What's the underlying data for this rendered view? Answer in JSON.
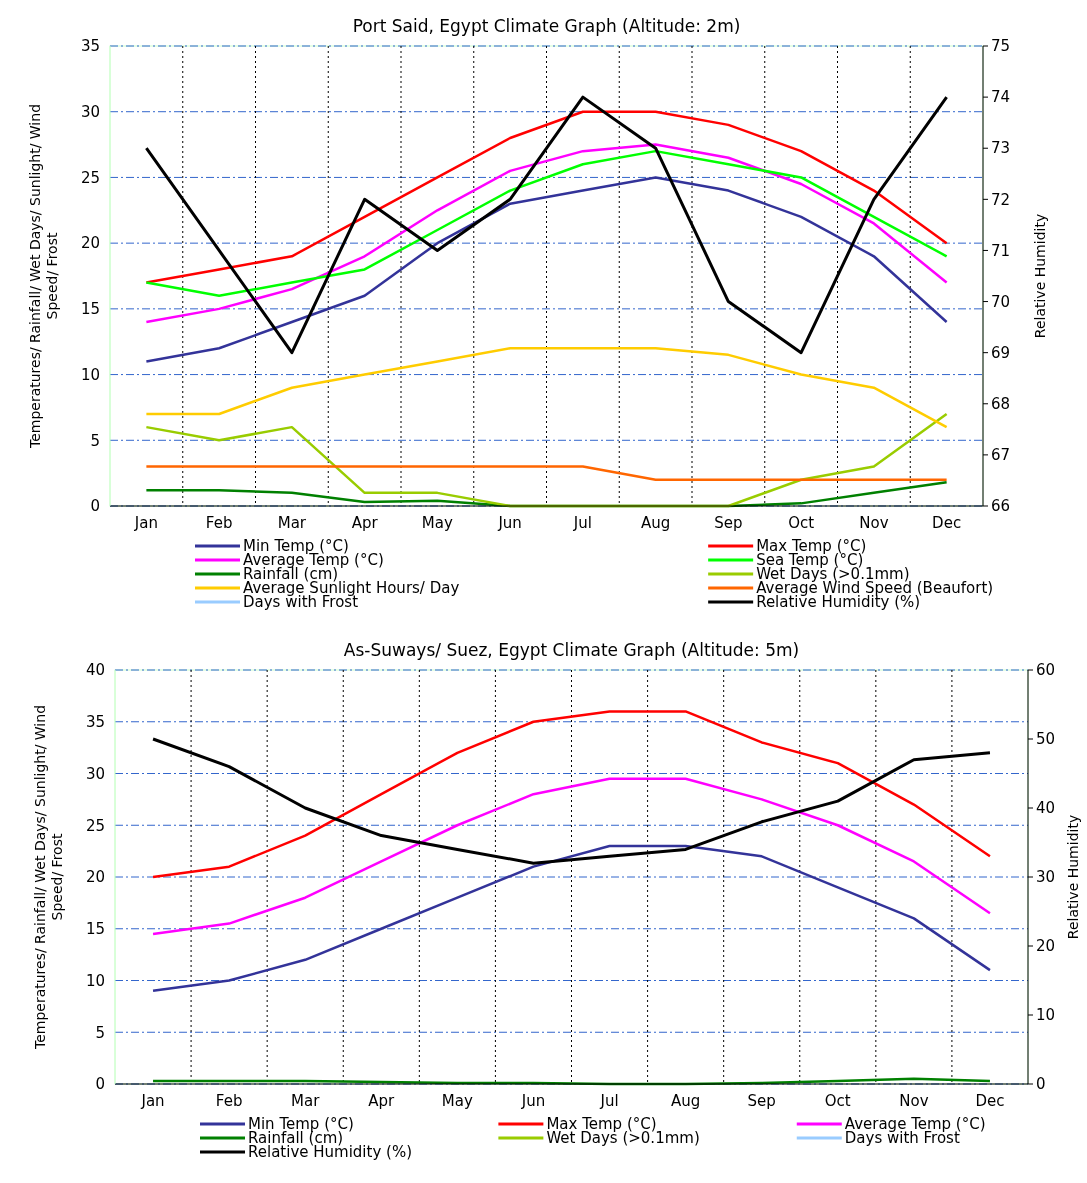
{
  "chart_data": [
    {
      "type": "line",
      "title": "Port Said, Egypt Climate Graph (Altitude: 2m)",
      "ylabel": "Temperatures/ Rainfall/ Wet Days/ Sunlight/ Wind Speed/ Frost",
      "y2label": "Relative Humidity",
      "categories": [
        "Jan",
        "Feb",
        "Mar",
        "Apr",
        "May",
        "Jun",
        "Jul",
        "Aug",
        "Sep",
        "Oct",
        "Nov",
        "Dec"
      ],
      "ylim": [
        0,
        35
      ],
      "yticks": [
        0,
        5,
        10,
        15,
        20,
        25,
        30,
        35
      ],
      "y2lim": [
        66,
        75
      ],
      "y2ticks": [
        66,
        67,
        68,
        69,
        70,
        71,
        72,
        73,
        74,
        75
      ],
      "grid": true,
      "legend": "bottom",
      "series": [
        {
          "name": "Min Temp (°C)",
          "color": "#333399",
          "values": [
            11,
            12,
            14,
            16,
            20,
            23,
            24,
            25,
            24,
            22,
            19,
            14
          ]
        },
        {
          "name": "Max Temp (°C)",
          "color": "#ff0000",
          "values": [
            17,
            18,
            19,
            22,
            25,
            28,
            30,
            30,
            29,
            27,
            24,
            20
          ]
        },
        {
          "name": "Average Temp (°C)",
          "color": "#ff00ff",
          "values": [
            14,
            15,
            16.5,
            19,
            22.5,
            25.5,
            27,
            27.5,
            26.5,
            24.5,
            21.5,
            17
          ]
        },
        {
          "name": "Sea Temp (°C)",
          "color": "#00ff00",
          "values": [
            17,
            16,
            17,
            18,
            21,
            24,
            26,
            27,
            26,
            25,
            22,
            19
          ]
        },
        {
          "name": "Rainfall (cm)",
          "color": "#008000",
          "values": [
            1.2,
            1.2,
            1,
            0.3,
            0.4,
            0,
            0,
            0,
            0,
            0.2,
            1,
            1.8
          ]
        },
        {
          "name": "Wet Days (>0.1mm)",
          "color": "#99cc00",
          "values": [
            6,
            5,
            6,
            1,
            1,
            0,
            0,
            0,
            0,
            2,
            3,
            7
          ]
        },
        {
          "name": "Average Sunlight Hours/ Day",
          "color": "#ffcc00",
          "values": [
            7,
            7,
            9,
            10,
            11,
            12,
            12,
            12,
            11.5,
            10,
            9,
            6
          ]
        },
        {
          "name": "Average Wind Speed (Beaufort)",
          "color": "#ff6600",
          "values": [
            3,
            3,
            3,
            3,
            3,
            3,
            3,
            2,
            2,
            2,
            2,
            2
          ]
        },
        {
          "name": "Days with Frost",
          "color": "#99ccff",
          "values": [
            null,
            null,
            null,
            null,
            null,
            null,
            null,
            null,
            null,
            null,
            null,
            null
          ]
        },
        {
          "name": "Relative Humidity (%)",
          "color": "#000000",
          "axis": "y2",
          "values": [
            73,
            71,
            69,
            72,
            71,
            72,
            74,
            73,
            70,
            69,
            72,
            74
          ]
        }
      ]
    },
    {
      "type": "line",
      "title": "As-Suways/ Suez, Egypt Climate Graph (Altitude: 5m)",
      "ylabel": "Temperatures/ Rainfall/ Wet Days/ Sunlight/ Wind Speed/ Frost",
      "y2label": "Relative Humidity",
      "categories": [
        "Jan",
        "Feb",
        "Mar",
        "Apr",
        "May",
        "Jun",
        "Jul",
        "Aug",
        "Sep",
        "Oct",
        "Nov",
        "Dec"
      ],
      "ylim": [
        0,
        40
      ],
      "yticks": [
        0,
        5,
        10,
        15,
        20,
        25,
        30,
        35,
        40
      ],
      "y2lim": [
        0,
        60
      ],
      "y2ticks": [
        0,
        10,
        20,
        30,
        40,
        50,
        60
      ],
      "grid": true,
      "legend": "bottom",
      "series": [
        {
          "name": "Min Temp (°C)",
          "color": "#333399",
          "values": [
            9,
            10,
            12,
            15,
            18,
            21,
            23,
            23,
            22,
            19,
            16,
            11
          ]
        },
        {
          "name": "Max Temp (°C)",
          "color": "#ff0000",
          "values": [
            20,
            21,
            24,
            28,
            32,
            35,
            36,
            36,
            33,
            31,
            27,
            22
          ]
        },
        {
          "name": "Average Temp (°C)",
          "color": "#ff00ff",
          "values": [
            14.5,
            15.5,
            18,
            21.5,
            25,
            28,
            29.5,
            29.5,
            27.5,
            25,
            21.5,
            16.5
          ]
        },
        {
          "name": "Rainfall (cm)",
          "color": "#008000",
          "values": [
            0.3,
            0.3,
            0.3,
            0.2,
            0.1,
            0.1,
            0,
            0,
            0.1,
            0.3,
            0.5,
            0.3
          ]
        },
        {
          "name": "Wet Days (>0.1mm)",
          "color": "#99cc00",
          "values": [
            null,
            null,
            null,
            null,
            null,
            null,
            null,
            null,
            null,
            null,
            null,
            null
          ]
        },
        {
          "name": "Days with Frost",
          "color": "#99ccff",
          "values": [
            null,
            null,
            null,
            null,
            null,
            null,
            null,
            null,
            null,
            null,
            null,
            null
          ]
        },
        {
          "name": "Relative Humidity (%)",
          "color": "#000000",
          "axis": "y2",
          "values": [
            50,
            46,
            40,
            36,
            34,
            32,
            33,
            34,
            38,
            41,
            47,
            48
          ]
        }
      ]
    }
  ]
}
